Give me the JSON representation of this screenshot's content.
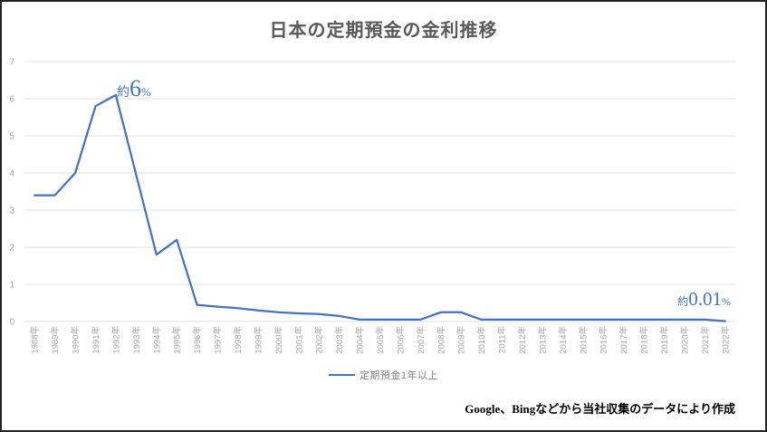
{
  "title": "日本の定期預金の金利推移",
  "annotations": {
    "peak": {
      "prefix": "約",
      "value": "6",
      "suffix": "%"
    },
    "latest": {
      "prefix": "約",
      "value": "0.01",
      "suffix": "%"
    }
  },
  "legend": {
    "label": "定期預金1年以上"
  },
  "footer": "Google、Bingなどから当社収集のデータにより作成",
  "colors": {
    "line": "#4472c4",
    "grid": "#e2e2e2",
    "axis_text": "#a3a3a3",
    "title_text": "#595959",
    "legend_text": "#808080",
    "annotation_text": "#4472c4",
    "footer_text": "#000000"
  },
  "chart_data": {
    "type": "line",
    "title": "日本の定期預金の金利推移",
    "xlabel": "",
    "ylabel": "",
    "ylim": [
      0,
      7
    ],
    "yticks": [
      0,
      1,
      2,
      3,
      4,
      5,
      6,
      7
    ],
    "grid": true,
    "legend_position": "bottom",
    "x": [
      "1988年",
      "1989年",
      "1990年",
      "1991年",
      "1992年",
      "1993年",
      "1994年",
      "1995年",
      "1996年",
      "1997年",
      "1998年",
      "1999年",
      "2000年",
      "2001年",
      "2002年",
      "2003年",
      "2004年",
      "2005年",
      "2006年",
      "2007年",
      "2008年",
      "2009年",
      "2010年",
      "2011年",
      "2012年",
      "2013年",
      "2014年",
      "2015年",
      "2016年",
      "2017年",
      "2018年",
      "2019年",
      "2020年",
      "2021年",
      "2022年"
    ],
    "series": [
      {
        "name": "定期預金1年以上",
        "color": "#4472c4",
        "values": [
          3.4,
          3.4,
          4.0,
          5.8,
          6.1,
          3.95,
          1.8,
          2.2,
          0.45,
          0.4,
          0.36,
          0.3,
          0.25,
          0.22,
          0.2,
          0.15,
          0.05,
          0.05,
          0.05,
          0.05,
          0.25,
          0.25,
          0.05,
          0.05,
          0.05,
          0.05,
          0.05,
          0.05,
          0.05,
          0.05,
          0.05,
          0.05,
          0.05,
          0.05,
          0.01
        ]
      }
    ],
    "point_annotations": [
      {
        "x": "1992年",
        "text": "約6%"
      },
      {
        "x": "2022年",
        "text": "約0.01%"
      }
    ]
  }
}
